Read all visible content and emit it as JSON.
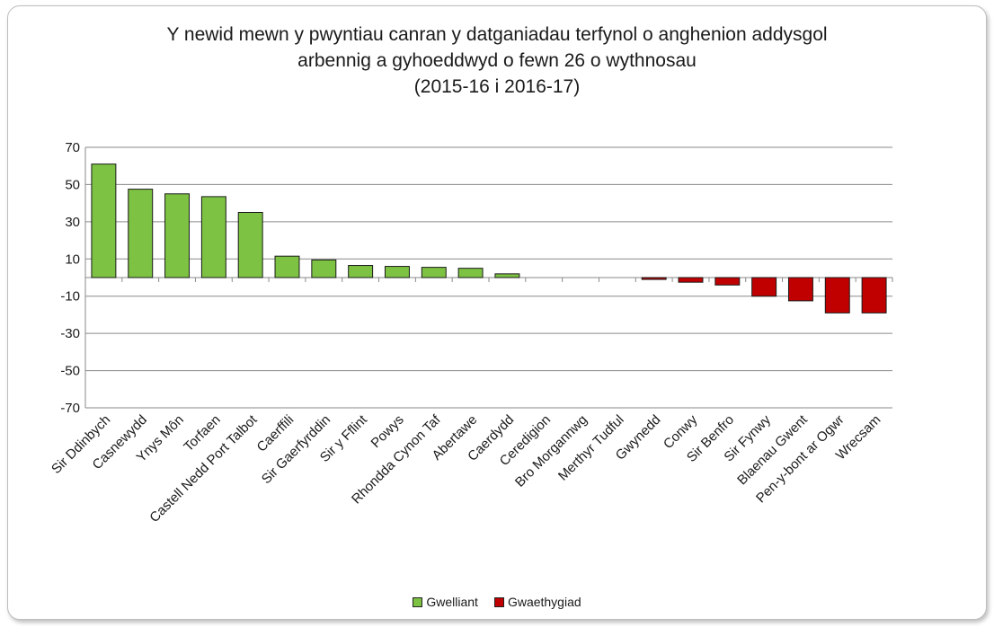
{
  "chart_data": {
    "type": "bar",
    "title": [
      "Y newid mewn y pwyntiau canran y datganiadau terfynol o anghenion addysgol",
      "arbennig a gyhoeddwyd o fewn 26 o wythnosau",
      "(2015-16 i 2016-17)"
    ],
    "xlabel": "",
    "ylabel": "",
    "ylim": [
      -70,
      70
    ],
    "yticks": [
      70,
      50,
      30,
      10,
      -10,
      -30,
      -50,
      -70
    ],
    "grid": true,
    "legend_position": "bottom",
    "categories": [
      "Sir Ddinbych",
      "Casnewydd",
      "Ynys Môn",
      "Torfaen",
      "Castell Nedd Port Talbot",
      "Caerffili",
      "Sir Gaerfyrddin",
      "Sir y Fflint",
      "Powys",
      "Rhondda Cynon Taf",
      "Abertawe",
      "Caerdydd",
      "Ceredigion",
      "Bro Morgannwg",
      "Merthyr Tudful",
      "Gwynedd",
      "Conwy",
      "Sir Benfro",
      "Sir Fynwy",
      "Blaenau Gwent",
      "Pen-y-bont ar Ogwr",
      "Wrecsam"
    ],
    "series": [
      {
        "name": "Gwelliant",
        "color": "#7dc242",
        "values": [
          61,
          47.5,
          45,
          43.5,
          35,
          11.5,
          9.5,
          6.5,
          6,
          5.5,
          5,
          2,
          0,
          0,
          0,
          null,
          null,
          null,
          null,
          null,
          null,
          null
        ]
      },
      {
        "name": "Gwaethygiad",
        "color": "#c00000",
        "values": [
          null,
          null,
          null,
          null,
          null,
          null,
          null,
          null,
          null,
          null,
          null,
          null,
          null,
          null,
          null,
          -1,
          -2.5,
          -4,
          -10,
          -12.5,
          -19,
          -19
        ]
      }
    ]
  }
}
